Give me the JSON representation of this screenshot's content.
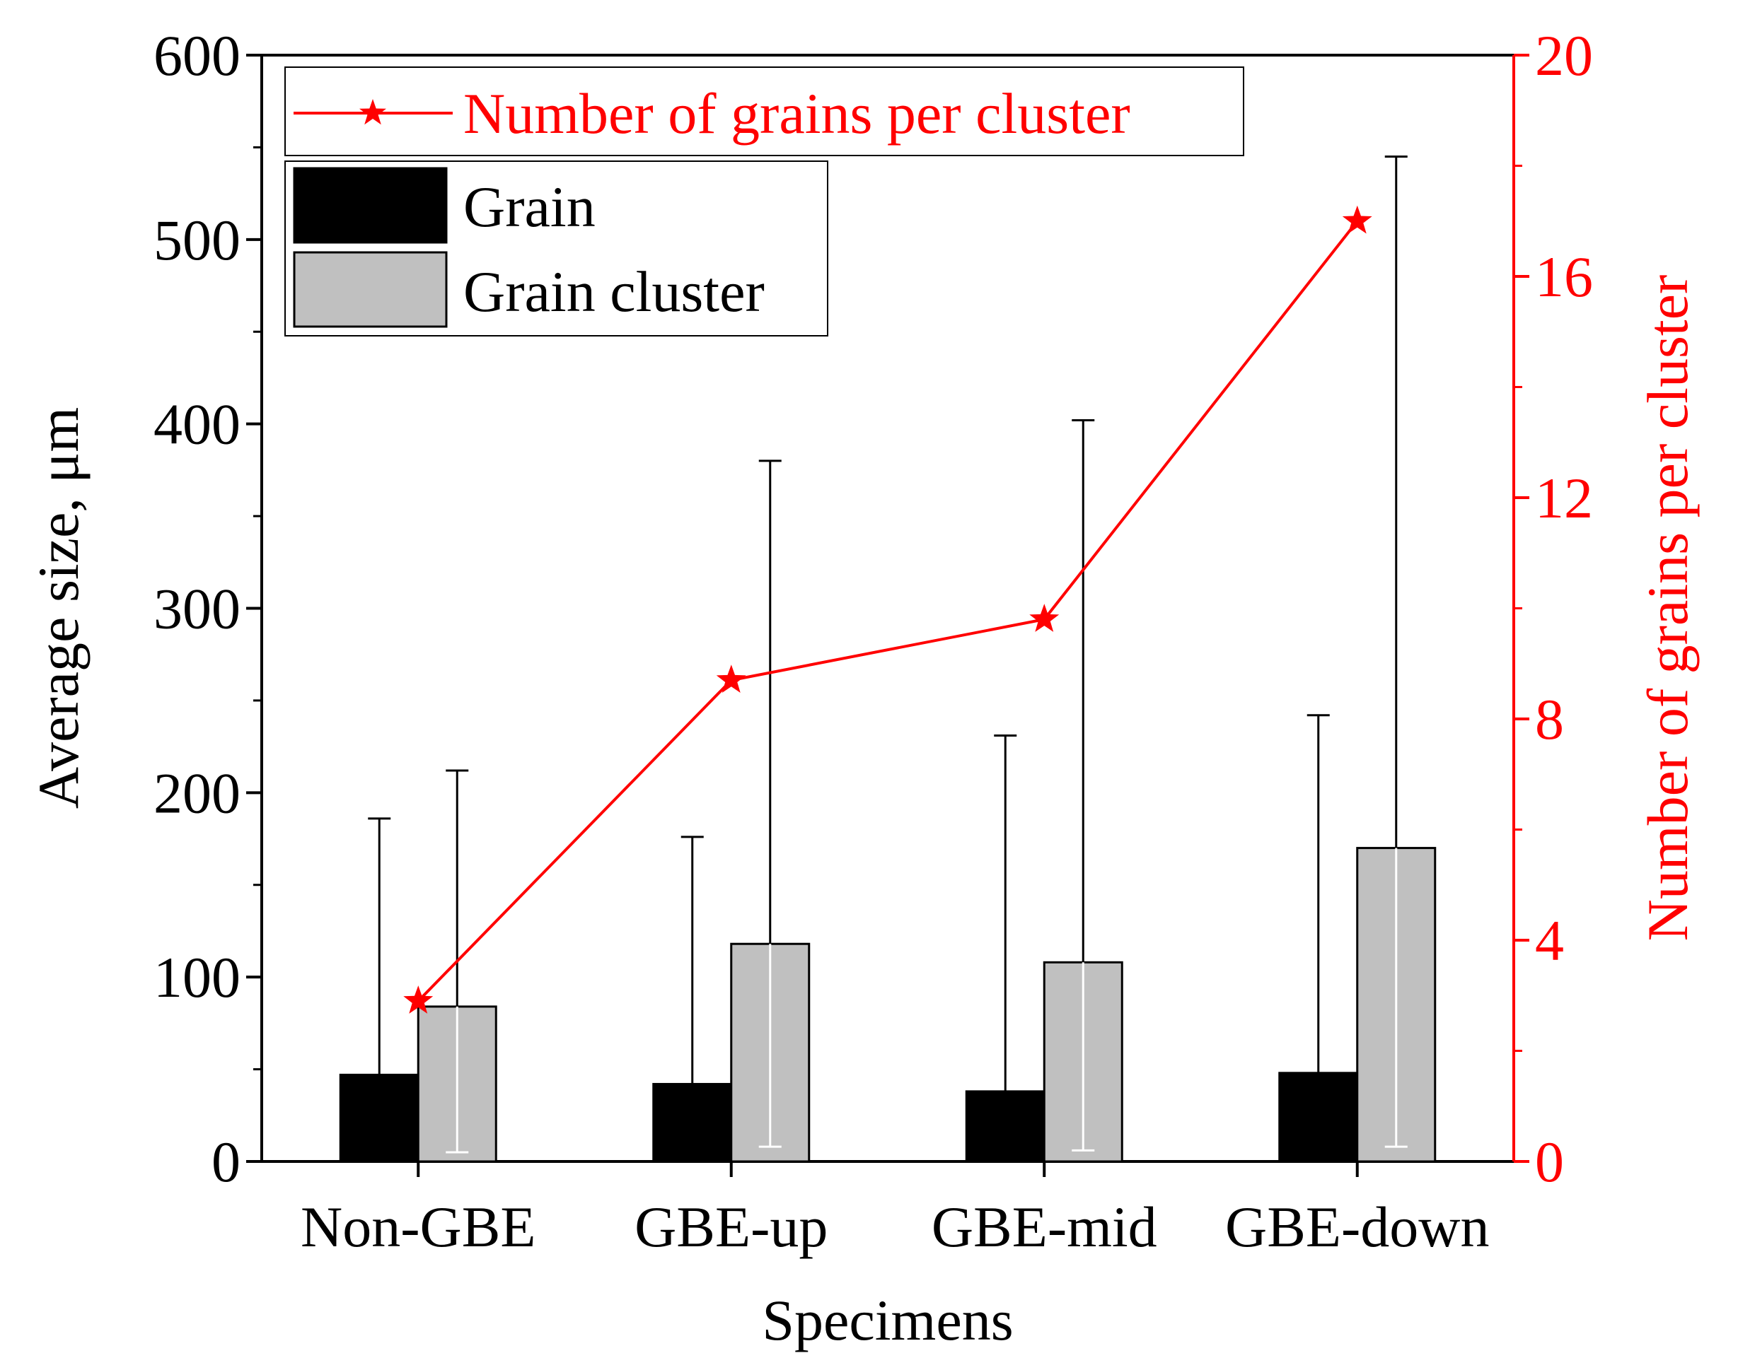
{
  "chart_data": {
    "type": "bar",
    "title": "",
    "xlabel": "Specimens",
    "ylabel": "Average size, μm",
    "y2label": "Number of grains per cluster",
    "categories": [
      "Non-GBE",
      "GBE-up",
      "GBE-mid",
      "GBE-down"
    ],
    "ylim": [
      0,
      600
    ],
    "yticks": [
      "0",
      "100",
      "200",
      "300",
      "400",
      "500",
      "600"
    ],
    "y2lim": [
      0,
      20
    ],
    "y2ticks": [
      "0",
      "4",
      "8",
      "12",
      "16",
      "20"
    ],
    "series": [
      {
        "name": "Grain",
        "color": "#000000",
        "values": [
          47,
          42,
          38,
          48
        ],
        "error_upper": [
          186,
          176,
          231,
          242
        ],
        "error_lower": [
          5,
          5,
          5,
          5
        ]
      },
      {
        "name": "Grain cluster",
        "color": "#c0c0c0",
        "values": [
          84,
          118,
          108,
          170
        ],
        "error_upper": [
          212,
          380,
          402,
          545
        ],
        "error_lower": [
          5,
          8,
          6,
          8
        ]
      }
    ],
    "line_series": {
      "name": "Number of grains per cluster",
      "color": "#ff0000",
      "axis": "right",
      "marker": "star",
      "values": [
        2.9,
        8.7,
        9.8,
        17.0
      ]
    },
    "legend": {
      "line_label": "Number of grains per cluster",
      "bar_labels": [
        "Grain",
        "Grain cluster"
      ],
      "placement": "top-left"
    }
  }
}
